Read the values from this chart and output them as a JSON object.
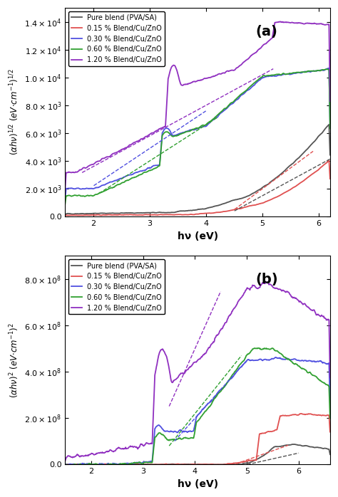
{
  "title_a": "(a)",
  "title_b": "(b)",
  "xlabel": "hν (eV)",
  "legend_labels": [
    "Pure blend (PVA/SA)",
    "0.15 % Blend/Cu/ZnO",
    "0.30 % Blend/Cu/ZnO",
    "0.60 % Blend/Cu/ZnO",
    "1.20 % Blend/Cu/ZnO"
  ],
  "colors": [
    "#555555",
    "#e05050",
    "#5050e0",
    "#30a030",
    "#9030c0"
  ],
  "xlim_a": [
    1.5,
    6.2
  ],
  "xlim_b": [
    1.5,
    6.6
  ],
  "ylim_a": [
    0,
    15000
  ],
  "ylim_b": [
    0,
    900000000.0
  ],
  "yticks_a": [
    0,
    2000,
    4000,
    6000,
    8000,
    10000,
    12000,
    14000
  ],
  "yticks_b": [
    0,
    200000000.0,
    400000000.0,
    600000000.0,
    800000000.0
  ],
  "figsize": [
    4.74,
    6.98
  ],
  "dpi": 100
}
